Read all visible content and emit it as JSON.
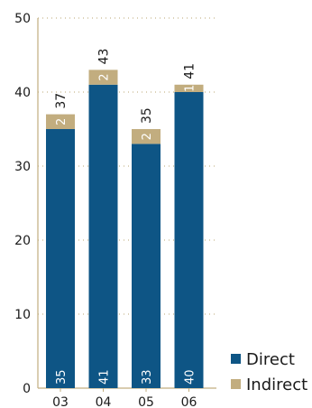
{
  "chart_data": {
    "type": "bar",
    "stacked": true,
    "categories": [
      "03",
      "04",
      "05",
      "06"
    ],
    "series": [
      {
        "name": "Direct",
        "color": "#0e5585",
        "values": [
          35,
          41,
          33,
          40
        ]
      },
      {
        "name": "Indirect",
        "color": "#c2ad7f",
        "values": [
          2,
          2,
          2,
          1
        ]
      }
    ],
    "totals": [
      37,
      43,
      35,
      41
    ],
    "ylim": [
      0,
      50
    ],
    "yticks": [
      0,
      10,
      20,
      30,
      40,
      50
    ],
    "grid": true,
    "grid_color": "#b8a572",
    "axis_color": "#c2ad7f",
    "legend_position": "bottom-right",
    "title": "",
    "xlabel": "",
    "ylabel": ""
  }
}
